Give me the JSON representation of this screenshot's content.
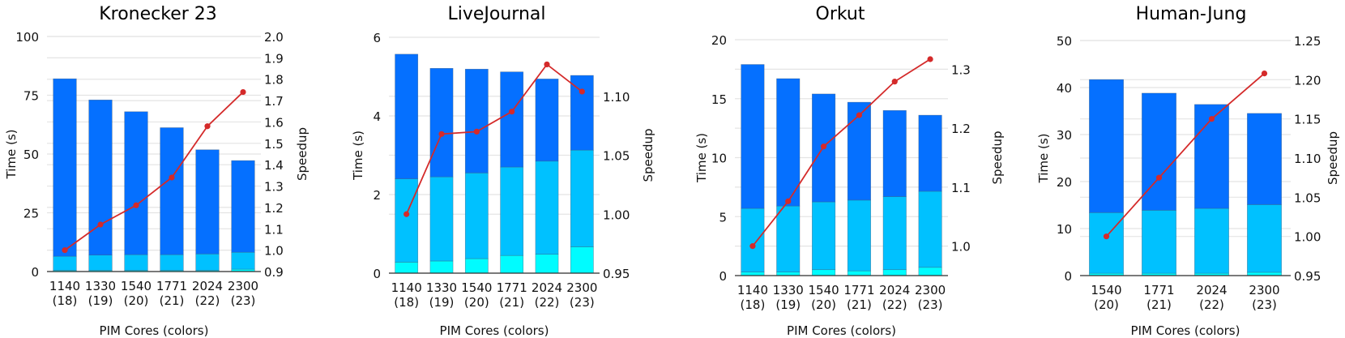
{
  "colors": {
    "top": "#0570FF",
    "middle": "#00C1FF",
    "bottom": "#00FCFF",
    "speedup_line": "#D42A2A",
    "grid": "#E4E4E4"
  },
  "chart_data": [
    {
      "type": "bar",
      "stacked": true,
      "title": "Kronecker 23",
      "xlabel": "PIM Cores (colors)",
      "ylabel": "Time (s)",
      "y2label": "Speedup",
      "categories": [
        [
          "1140",
          "(18)"
        ],
        [
          "1330",
          "(19)"
        ],
        [
          "1540",
          "(20)"
        ],
        [
          "1771",
          "(21)"
        ],
        [
          "2024",
          "(22)"
        ],
        [
          "2300",
          "(23)"
        ]
      ],
      "ylim": [
        0,
        100
      ],
      "yticks": [
        0,
        25,
        50,
        75,
        100
      ],
      "y2lim": [
        0.9,
        2.0
      ],
      "y2ticks": [
        "0.9",
        "1.0",
        "1.1",
        "1.2",
        "1.3",
        "1.4",
        "1.5",
        "1.6",
        "1.7",
        "1.8",
        "1.9",
        "2.0"
      ],
      "stack_tops": {
        "bottom": [
          0.5,
          0.5,
          0.5,
          0.5,
          0.5,
          1.0
        ],
        "middle": [
          6.5,
          7.0,
          7.2,
          7.2,
          7.5,
          8.2
        ],
        "total": [
          82,
          73,
          68,
          61.2,
          51.8,
          47.2
        ]
      },
      "speedup": [
        1.0,
        1.12,
        1.21,
        1.34,
        1.58,
        1.74
      ],
      "grid": true
    },
    {
      "type": "bar",
      "stacked": true,
      "title": "LiveJournal",
      "xlabel": "PIM Cores (colors)",
      "ylabel": "Time (s)",
      "y2label": "Speedup",
      "categories": [
        [
          "1140",
          "(18)"
        ],
        [
          "1330",
          "(19)"
        ],
        [
          "1540",
          "(20)"
        ],
        [
          "1771",
          "(21)"
        ],
        [
          "2024",
          "(22)"
        ],
        [
          "2300",
          "(23)"
        ]
      ],
      "ylim": [
        0,
        6
      ],
      "yticks": [
        0,
        2,
        4,
        6
      ],
      "y2lim": [
        0.95,
        1.15
      ],
      "y2ticks": [
        "0.95",
        "1.00",
        "1.05",
        "1.10"
      ],
      "stack_tops": {
        "bottom": [
          0.28,
          0.31,
          0.37,
          0.45,
          0.48,
          0.67
        ],
        "middle": [
          2.4,
          2.45,
          2.55,
          2.7,
          2.85,
          3.13
        ],
        "total": [
          5.57,
          5.21,
          5.19,
          5.12,
          4.94,
          5.03
        ]
      },
      "speedup": [
        1.0,
        1.068,
        1.07,
        1.087,
        1.127,
        1.104
      ],
      "grid": true
    },
    {
      "type": "bar",
      "stacked": true,
      "title": "Orkut",
      "xlabel": "PIM Cores (colors)",
      "ylabel": "Time (s)",
      "y2label": "Speedup",
      "categories": [
        [
          "1140",
          "(18)"
        ],
        [
          "1330",
          "(19)"
        ],
        [
          "1540",
          "(20)"
        ],
        [
          "1771",
          "(21)"
        ],
        [
          "2024",
          "(22)"
        ],
        [
          "2300",
          "(23)"
        ]
      ],
      "ylim": [
        0,
        20
      ],
      "yticks": [
        0,
        5,
        10,
        15,
        20
      ],
      "y2lim": [
        0.95,
        1.35
      ],
      "y2ticks": [
        "1.0",
        "1.1",
        "1.2",
        "1.3"
      ],
      "stack_tops": {
        "bottom": [
          0.3,
          0.3,
          0.5,
          0.4,
          0.5,
          0.7
        ],
        "middle": [
          5.7,
          5.9,
          6.25,
          6.4,
          6.7,
          7.15
        ],
        "total": [
          17.9,
          16.7,
          15.4,
          14.7,
          14.0,
          13.6
        ]
      },
      "speedup": [
        1.0,
        1.076,
        1.169,
        1.222,
        1.279,
        1.317
      ],
      "grid": true
    },
    {
      "type": "bar",
      "stacked": true,
      "title": "Human-Jung",
      "xlabel": "PIM Cores (colors)",
      "ylabel": "Time (s)",
      "y2label": "Speedup",
      "categories": [
        [
          "1540",
          "(20)"
        ],
        [
          "1771",
          "(21)"
        ],
        [
          "2024",
          "(22)"
        ],
        [
          "2300",
          "(23)"
        ]
      ],
      "ylim": [
        0,
        50
      ],
      "yticks": [
        0,
        10,
        20,
        30,
        40,
        50
      ],
      "y2lim": [
        0.95,
        1.25
      ],
      "y2ticks": [
        "0.95",
        "1.00",
        "1.05",
        "1.10",
        "1.15",
        "1.20",
        "1.25"
      ],
      "stack_tops": {
        "bottom": [
          0.5,
          0.5,
          0.5,
          0.7
        ],
        "middle": [
          13.4,
          13.9,
          14.3,
          15.1
        ],
        "total": [
          41.7,
          38.8,
          36.4,
          34.5
        ]
      },
      "speedup": [
        1.0,
        1.075,
        1.15,
        1.208
      ],
      "grid": true
    }
  ]
}
